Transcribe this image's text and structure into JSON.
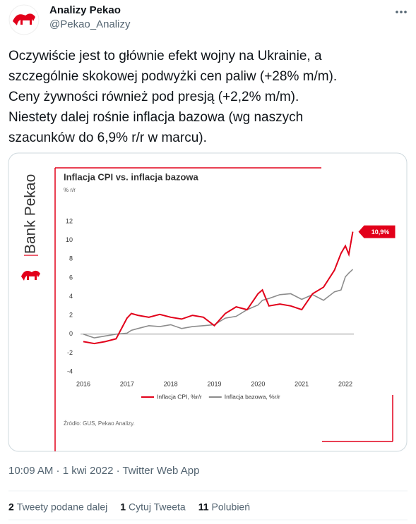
{
  "tweet": {
    "author": "Analizy Pekao",
    "handle": "@Pekao_Analizy",
    "text_lines": [
      "Oczywiście jest to głównie efekt wojny na Ukrainie, a",
      "szczególnie skokowej podwyżki cen paliw (+28% m/m).",
      "Ceny żywności również pod presją (+2,2% m/m).",
      "Niestety dalej rośnie inflacja bazowa (wg naszych",
      "szacunków do 6,9% r/r w marcu)."
    ],
    "timestamp": "10:09 AM · 1 kwi 2022 · Twitter Web App",
    "stats": [
      {
        "count": 2,
        "label": "Tweety podane dalej"
      },
      {
        "count": 1,
        "label": "Cytuj Tweeta"
      },
      {
        "count": 11,
        "label": "Polubień"
      }
    ]
  },
  "chart_data": {
    "type": "line",
    "brand": "Bank Pekao",
    "title": "Inflacja CPI vs. inflacja bazowa",
    "y_label": "% r/r",
    "source": "Źródło: GUS, Pekao Analizy.",
    "x": [
      2016,
      2016.25,
      2016.5,
      2016.75,
      2017,
      2017.1,
      2017.25,
      2017.5,
      2017.75,
      2018,
      2018.25,
      2018.5,
      2018.75,
      2019,
      2019.25,
      2019.5,
      2019.75,
      2020,
      2020.1,
      2020.25,
      2020.5,
      2020.75,
      2021,
      2021.25,
      2021.5,
      2021.75,
      2021.9,
      2022,
      2022.08,
      2022.17
    ],
    "xlim": [
      2016,
      2022
    ],
    "xticks": [
      2016,
      2017,
      2018,
      2019,
      2020,
      2021,
      2022
    ],
    "ylim": [
      -4,
      12
    ],
    "yticks": [
      -4,
      -2,
      0,
      2,
      4,
      6,
      8,
      10,
      12
    ],
    "series": [
      {
        "name": "Inflacja CPI, %r/r",
        "color": "#e2001a",
        "values": [
          -0.8,
          -1.0,
          -0.8,
          -0.5,
          1.7,
          2.2,
          2.0,
          1.8,
          2.1,
          1.8,
          1.6,
          2.0,
          1.8,
          0.9,
          2.2,
          2.9,
          2.6,
          4.3,
          4.7,
          3.0,
          3.2,
          3.0,
          2.6,
          4.3,
          5.0,
          6.8,
          8.6,
          9.4,
          8.5,
          10.9
        ],
        "value_labels": [
          null,
          null,
          null,
          null,
          null,
          null,
          null,
          null,
          null,
          null,
          null,
          null,
          null,
          null,
          null,
          null,
          null,
          null,
          null,
          null,
          null,
          null,
          null,
          null,
          null,
          null,
          null,
          null,
          null,
          "10,9%"
        ]
      },
      {
        "name": "Inflacja bazowa, %r/r",
        "color": "#8c8c8c",
        "values": [
          0,
          -0.4,
          -0.2,
          0,
          0.1,
          0.4,
          0.6,
          0.9,
          0.8,
          1.0,
          0.6,
          0.8,
          0.9,
          1.0,
          1.7,
          1.9,
          2.6,
          3.1,
          3.6,
          3.8,
          4.2,
          4.3,
          3.7,
          4.2,
          3.6,
          4.5,
          4.7,
          6.1,
          6.5,
          6.9
        ]
      }
    ]
  }
}
